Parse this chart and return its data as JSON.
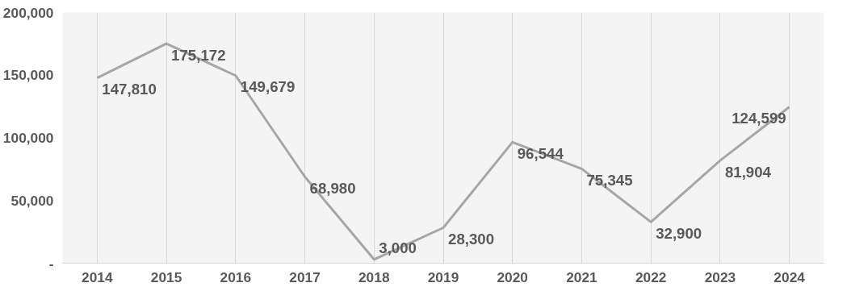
{
  "chart_data": {
    "type": "line",
    "categories": [
      "2014",
      "2015",
      "2016",
      "2017",
      "2018",
      "2019",
      "2020",
      "2021",
      "2022",
      "2023",
      "2024"
    ],
    "series": [
      {
        "color": "#a6a6a6",
        "values": [
          147810,
          175172,
          149679,
          68980,
          3000,
          28300,
          96544,
          75345,
          32900,
          81904,
          124599
        ],
        "value_labels": [
          "147,810",
          "175,172",
          "149,679",
          "68,980",
          "3,000",
          "28,300",
          "96,544",
          "75,345",
          "32,900",
          "81,904",
          "124,599"
        ]
      }
    ],
    "ylim": [
      0,
      200000
    ],
    "yticks": [
      {
        "value": 0,
        "label": "-"
      },
      {
        "value": 50000,
        "label": "50,000"
      },
      {
        "value": 100000,
        "label": "100,000"
      },
      {
        "value": 150000,
        "label": "150,000"
      },
      {
        "value": 200000,
        "label": "200,000"
      }
    ],
    "grid": "x",
    "marker": "none",
    "line_style": "solid"
  }
}
